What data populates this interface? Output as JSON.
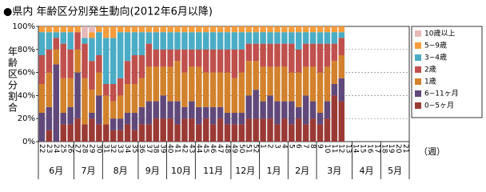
{
  "chart_data": {
    "type": "bar",
    "stacked": true,
    "title": "●県内 年齢区分別発生動向(2012年6月以降)",
    "y_label": "年齢区分割合",
    "x_label": "（週）",
    "categories": [
      "22",
      "23",
      "24",
      "25",
      "26",
      "27",
      "28",
      "29",
      "30",
      "31",
      "32",
      "33",
      "34",
      "35",
      "36",
      "37",
      "38",
      "39",
      "40",
      "41",
      "42",
      "43",
      "44",
      "45",
      "46",
      "47",
      "48",
      "49",
      "50",
      "51",
      "52",
      "1",
      "2",
      "3",
      "4",
      "5",
      "6",
      "7",
      "8",
      "9",
      "10",
      "11",
      "12",
      "13",
      "14",
      "15",
      "16",
      "17",
      "18",
      "19",
      "20",
      "21"
    ],
    "months": [
      "6月",
      "7月",
      "8月",
      "9月",
      "10月",
      "11月",
      "12月",
      "1月",
      "2月",
      "3月",
      "4月",
      "5月"
    ],
    "ylim": [
      0,
      100
    ],
    "yticks": [
      {
        "value": 0,
        "label": "0%"
      },
      {
        "value": 20,
        "label": "20%"
      },
      {
        "value": 40,
        "label": "40%"
      },
      {
        "value": 60,
        "label": "60%"
      },
      {
        "value": 80,
        "label": "80%"
      },
      {
        "value": 100,
        "label": "100%"
      }
    ],
    "grid": true,
    "series": [
      {
        "name": "10歳以上",
        "color": "#e6b9b8",
        "values": [
          0,
          0,
          0,
          0,
          0,
          0,
          10,
          5,
          0,
          0,
          0,
          0,
          0,
          0,
          0,
          0,
          0,
          0,
          0,
          0,
          0,
          0,
          0,
          0,
          0,
          0,
          0,
          0,
          0,
          0,
          0,
          0,
          0,
          0,
          0,
          0,
          0,
          0,
          0,
          0,
          0,
          0,
          0,
          null,
          null,
          null,
          null,
          null,
          null,
          null,
          null,
          null
        ]
      },
      {
        "name": "5~9歳",
        "color": "#f59d3d",
        "values": [
          5,
          5,
          5,
          5,
          5,
          5,
          0,
          5,
          5,
          10,
          10,
          5,
          5,
          5,
          5,
          5,
          5,
          5,
          5,
          5,
          5,
          5,
          5,
          5,
          5,
          5,
          5,
          5,
          5,
          5,
          5,
          5,
          5,
          5,
          5,
          5,
          5,
          5,
          5,
          5,
          5,
          5,
          5,
          null,
          null,
          null,
          null,
          null,
          null,
          null,
          null,
          null
        ]
      },
      {
        "name": "3~4歳",
        "color": "#4bacc6",
        "values": [
          20,
          15,
          5,
          10,
          15,
          0,
          5,
          20,
          20,
          40,
          40,
          40,
          25,
          20,
          20,
          10,
          15,
          15,
          15,
          15,
          15,
          15,
          15,
          15,
          15,
          15,
          15,
          15,
          15,
          10,
          10,
          10,
          10,
          10,
          10,
          10,
          15,
          10,
          10,
          10,
          10,
          10,
          5,
          null,
          null,
          null,
          null,
          null,
          null,
          null,
          null,
          null
        ]
      },
      {
        "name": "2歳",
        "color": "#c0504d",
        "values": [
          25,
          20,
          10,
          30,
          25,
          15,
          30,
          25,
          15,
          10,
          15,
          15,
          20,
          25,
          20,
          20,
          15,
          15,
          15,
          10,
          20,
          15,
          15,
          20,
          20,
          20,
          20,
          25,
          20,
          15,
          15,
          20,
          20,
          20,
          20,
          25,
          20,
          20,
          20,
          25,
          20,
          15,
          15,
          null,
          null,
          null,
          null,
          null,
          null,
          null,
          null,
          null
        ]
      },
      {
        "name": "1歳",
        "color": "#d2822c",
        "values": [
          25,
          30,
          13,
          30,
          25,
          20,
          40,
          20,
          20,
          25,
          15,
          20,
          25,
          25,
          25,
          30,
          30,
          25,
          30,
          35,
          30,
          30,
          35,
          30,
          30,
          30,
          35,
          30,
          35,
          30,
          25,
          30,
          25,
          30,
          30,
          25,
          30,
          25,
          30,
          35,
          30,
          20,
          20,
          null,
          null,
          null,
          null,
          null,
          null,
          null,
          null,
          null
        ]
      },
      {
        "name": "6~11ヶ月",
        "color": "#60497a",
        "values": [
          25,
          20,
          67,
          10,
          15,
          40,
          0,
          5,
          25,
          0,
          10,
          10,
          10,
          15,
          15,
          20,
          15,
          20,
          15,
          20,
          10,
          15,
          15,
          10,
          15,
          10,
          10,
          10,
          10,
          20,
          25,
          15,
          20,
          20,
          15,
          20,
          10,
          25,
          15,
          10,
          15,
          10,
          20,
          null,
          null,
          null,
          null,
          null,
          null,
          null,
          null,
          null
        ]
      },
      {
        "name": "0~5ヶ月",
        "color": "#9b3a35",
        "values": [
          0,
          10,
          0,
          15,
          15,
          20,
          15,
          20,
          15,
          15,
          10,
          10,
          15,
          10,
          15,
          15,
          20,
          20,
          20,
          15,
          20,
          20,
          15,
          20,
          15,
          20,
          15,
          15,
          15,
          20,
          20,
          20,
          20,
          15,
          20,
          15,
          20,
          15,
          20,
          15,
          20,
          40,
          35,
          null,
          null,
          null,
          null,
          null,
          null,
          null,
          null,
          null
        ]
      }
    ]
  }
}
